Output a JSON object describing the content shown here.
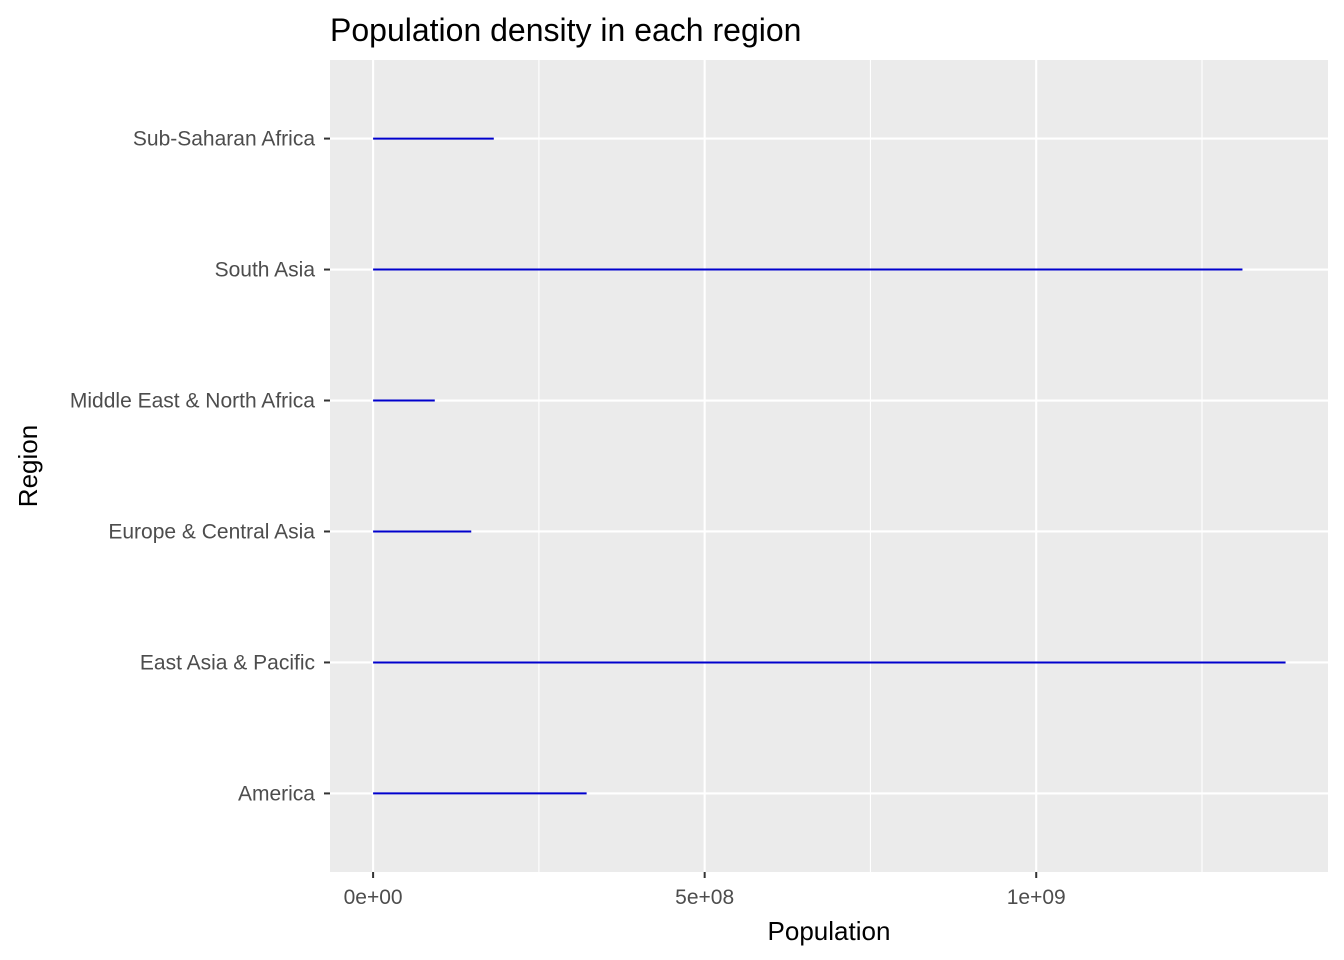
{
  "chart_data": {
    "type": "bar",
    "orientation": "horizontal",
    "mark": "segment",
    "title": "Population density in each region",
    "xlabel": "Population",
    "ylabel": "Region",
    "categories": [
      "America",
      "East Asia & Pacific",
      "Europe & Central Asia",
      "Middle East & North Africa",
      "South Asia",
      "Sub-Saharan Africa"
    ],
    "values": [
      322000000,
      1376000000,
      148000000,
      93000000,
      1311000000,
      182000000
    ],
    "xlim": [
      -65000000,
      1440000000
    ],
    "x_ticks": [
      0,
      500000000,
      1000000000
    ],
    "x_tick_labels": [
      "0e+00",
      "5e+08",
      "1e+09"
    ],
    "grid": true,
    "legend": "none",
    "colors": {
      "segment": "#0000cd",
      "panel_background": "#ebebeb",
      "grid": "#ffffff",
      "tick_text": "#4d4d4d",
      "tick_mark": "#333333"
    }
  }
}
